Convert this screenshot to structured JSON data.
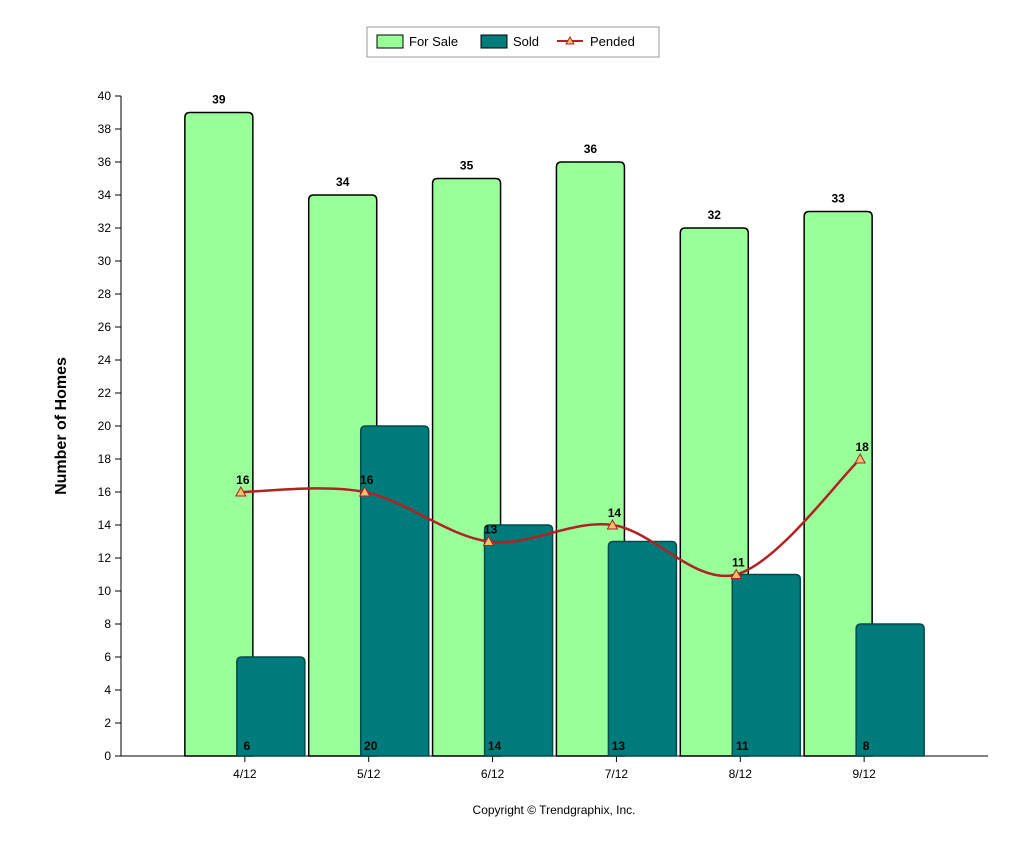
{
  "colors": {
    "for_sale": "#99ff99",
    "sold": "#007b7b",
    "pended_line": "#b22222",
    "pended_marker": "#f0c070",
    "outline": "#000000"
  },
  "footer": {
    "copyright": "Copyright © Trendgraphix, Inc."
  },
  "chart_data": {
    "type": "bar",
    "title": "",
    "xlabel": "",
    "ylabel": "Number of Homes",
    "categories": [
      "4/12",
      "5/12",
      "6/12",
      "7/12",
      "8/12",
      "9/12"
    ],
    "ylim": [
      0,
      40
    ],
    "yticks": [
      0,
      2,
      4,
      6,
      8,
      10,
      12,
      14,
      16,
      18,
      20,
      22,
      24,
      26,
      28,
      30,
      32,
      34,
      36,
      38,
      40
    ],
    "grid": false,
    "legend_position": "top-center",
    "series": [
      {
        "name": "For Sale",
        "type": "bar",
        "values": [
          39,
          34,
          35,
          36,
          32,
          33
        ]
      },
      {
        "name": "Sold",
        "type": "bar",
        "values": [
          6,
          20,
          14,
          13,
          11,
          8
        ]
      },
      {
        "name": "Pended",
        "type": "line",
        "values": [
          16,
          16,
          13,
          14,
          11,
          18
        ]
      }
    ]
  }
}
